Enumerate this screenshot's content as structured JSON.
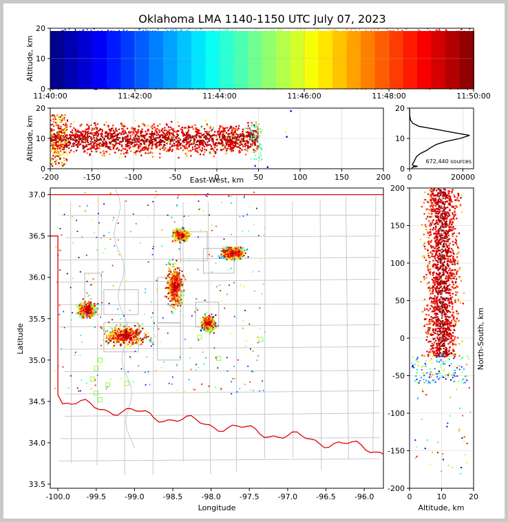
{
  "chart_data": {
    "title": "Oklahoma LMA 1140-1150 UTC July 07, 2023",
    "colormap": "jet",
    "panels": {
      "time_height": {
        "type": "scatter",
        "ylabel": "Altitude, km",
        "xlim": [
          "11:40:00",
          "11:50:00"
        ],
        "xticks": [
          "11:40:00",
          "11:42:00",
          "11:44:00",
          "11:46:00",
          "11:48:00",
          "11:50:00"
        ],
        "ylim": [
          0,
          20
        ],
        "yticks": [
          0,
          10,
          20
        ],
        "grid": true
      },
      "ew_height": {
        "type": "scatter",
        "xlabel": "East-West, km",
        "ylabel": "Altitude, km",
        "xlim": [
          -200,
          200
        ],
        "xticks": [
          -200,
          -150,
          -100,
          -50,
          0,
          50,
          100,
          150,
          200
        ],
        "ylim": [
          0,
          20
        ],
        "yticks": [
          0,
          10,
          20
        ],
        "source_extent_x": [
          -200,
          50
        ],
        "grid": true
      },
      "histogram": {
        "type": "line",
        "xlim": [
          0,
          24000
        ],
        "xticks": [
          0,
          20000
        ],
        "ylim": [
          0,
          20
        ],
        "yticks": [
          0,
          10,
          20
        ],
        "annotation": "672,440 sources",
        "profile": [
          {
            "alt": 0.2,
            "count": 800
          },
          {
            "alt": 0.6,
            "count": 1500
          },
          {
            "alt": 0.8,
            "count": 3000
          },
          {
            "alt": 1.0,
            "count": 1400
          },
          {
            "alt": 1.5,
            "count": 1000
          },
          {
            "alt": 2.0,
            "count": 1500
          },
          {
            "alt": 3.0,
            "count": 2000
          },
          {
            "alt": 4.0,
            "count": 2600
          },
          {
            "alt": 5.0,
            "count": 4000
          },
          {
            "alt": 6.0,
            "count": 6300
          },
          {
            "alt": 7.0,
            "count": 8000
          },
          {
            "alt": 8.0,
            "count": 10000
          },
          {
            "alt": 9.0,
            "count": 13500
          },
          {
            "alt": 10.0,
            "count": 19000
          },
          {
            "alt": 11.0,
            "count": 22500
          },
          {
            "alt": 12.0,
            "count": 16000
          },
          {
            "alt": 13.0,
            "count": 10000
          },
          {
            "alt": 14.0,
            "count": 3500
          },
          {
            "alt": 15.0,
            "count": 1200
          },
          {
            "alt": 16.0,
            "count": 400
          },
          {
            "alt": 17.0,
            "count": 150
          },
          {
            "alt": 18.0,
            "count": 50
          },
          {
            "alt": 20.0,
            "count": 0
          }
        ]
      },
      "plan_view": {
        "type": "scatter",
        "xlabel": "Longitude",
        "ylabel": "Latitude",
        "xlim": [
          -100.1,
          -95.75
        ],
        "ylim": [
          33.45,
          37.08
        ],
        "xticks": [
          -100.0,
          -99.5,
          -99.0,
          -98.5,
          -98.0,
          -97.5,
          -97.0,
          -96.5,
          -96.0
        ],
        "yticks": [
          33.5,
          34.0,
          34.5,
          35.0,
          35.5,
          36.0,
          36.5,
          37.0
        ],
        "clusters": [
          {
            "lon": -99.63,
            "lat": 35.62,
            "rlon": 0.17,
            "rlat": 0.13
          },
          {
            "lon": -99.12,
            "lat": 35.3,
            "rlon": 0.42,
            "rlat": 0.16
          },
          {
            "lon": -98.48,
            "lat": 35.9,
            "rlon": 0.15,
            "rlat": 0.38
          },
          {
            "lon": -98.05,
            "lat": 35.45,
            "rlon": 0.12,
            "rlat": 0.13
          },
          {
            "lon": -97.72,
            "lat": 36.3,
            "rlon": 0.22,
            "rlat": 0.11
          },
          {
            "lon": -98.4,
            "lat": 36.52,
            "rlon": 0.15,
            "rlat": 0.1
          }
        ]
      },
      "ns_height": {
        "type": "scatter",
        "xlabel": "Altitude, km",
        "ylabel": "North-South, km",
        "xlim": [
          0,
          20
        ],
        "xticks": [
          0,
          10,
          20
        ],
        "ylim": [
          -200,
          200
        ],
        "yticks": [
          -200,
          -150,
          -100,
          -50,
          0,
          50,
          100,
          150,
          200
        ],
        "source_extent_y": [
          -25,
          200
        ],
        "grid": true
      }
    }
  },
  "colors": {
    "state_border": "#e00000",
    "county_lines": "#c8c8c8",
    "station_markers": "#88ff44"
  }
}
